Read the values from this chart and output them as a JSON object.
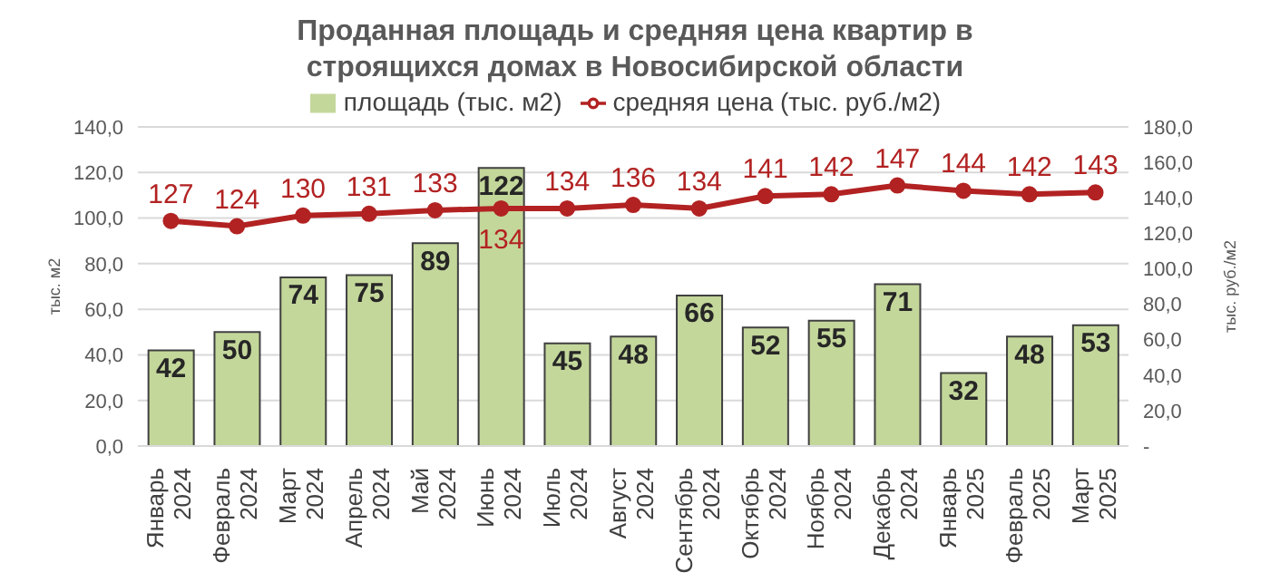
{
  "chart_data": {
    "type": "bar",
    "title": "Проданная площадь и средняя цена квартир в строящихся домах в Новосибирской области",
    "categories": [
      "Январь 2024",
      "Февраль 2024",
      "Март 2024",
      "Апрель 2024",
      "Май 2024",
      "Июнь 2024",
      "Июль 2024",
      "Август 2024",
      "Сентябрь 2024",
      "Октябрь 2024",
      "Ноябрь 2024",
      "Декабрь 2024",
      "Январь 2025",
      "Февраль 2025",
      "Март 2025"
    ],
    "series": [
      {
        "name": "площадь (тыс. м2)",
        "color": "#c4d79b",
        "values": [
          42,
          50,
          74,
          75,
          89,
          122,
          45,
          48,
          66,
          52,
          55,
          71,
          32,
          48,
          53
        ]
      },
      {
        "name": "средняя цена (тыс. руб./м2)",
        "type": "line",
        "axis": "y2",
        "color": "#b22222",
        "marker": "circle",
        "values": [
          127,
          124,
          130,
          131,
          133,
          134,
          134,
          136,
          134,
          141,
          142,
          147,
          144,
          142,
          143
        ]
      }
    ],
    "data_labels": true,
    "ylabel": "тыс. м2",
    "y2label": "тыс. руб./м2",
    "ylim": [
      0,
      140
    ],
    "yticks": [
      {
        "value": 0,
        "label": "0,0"
      },
      {
        "value": 20,
        "label": "20,0"
      },
      {
        "value": 40,
        "label": "40,0"
      },
      {
        "value": 60,
        "label": "60,0"
      },
      {
        "value": 80,
        "label": "80,0"
      },
      {
        "value": 100,
        "label": "100,0"
      },
      {
        "value": 120,
        "label": "120,0"
      },
      {
        "value": 140,
        "label": "140,0"
      }
    ],
    "y2lim": [
      0,
      180
    ],
    "y2ticks": [
      {
        "value": 0,
        "label": "-"
      },
      {
        "value": 20,
        "label": "20,0"
      },
      {
        "value": 40,
        "label": "40,0"
      },
      {
        "value": 60,
        "label": "60,0"
      },
      {
        "value": 80,
        "label": "80,0"
      },
      {
        "value": 100,
        "label": "100,0"
      },
      {
        "value": 120,
        "label": "120,0"
      },
      {
        "value": 140,
        "label": "140,0"
      },
      {
        "value": 160,
        "label": "160,0"
      },
      {
        "value": 180,
        "label": "180,0"
      }
    ],
    "grid": "y",
    "legend": "top"
  }
}
